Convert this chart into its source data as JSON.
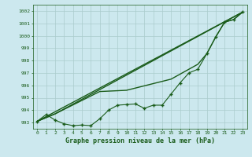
{
  "xlabel": "Graphe pression niveau de la mer (hPa)",
  "ylim": [
    992.5,
    1002.5
  ],
  "xlim": [
    -0.5,
    23.5
  ],
  "yticks": [
    993,
    994,
    995,
    996,
    997,
    998,
    999,
    1000,
    1001,
    1002
  ],
  "xticks": [
    0,
    1,
    2,
    3,
    4,
    5,
    6,
    7,
    8,
    9,
    10,
    11,
    12,
    13,
    14,
    15,
    16,
    17,
    18,
    19,
    20,
    21,
    22,
    23
  ],
  "bg_color": "#cce8ee",
  "grid_color": "#aacccc",
  "line_color": "#1a5c1a",
  "line1_x": [
    0,
    23
  ],
  "line1_y": [
    993.1,
    1001.9
  ],
  "line2_x": [
    0,
    2,
    23
  ],
  "line2_y": [
    993.1,
    993.7,
    1001.9
  ],
  "line3_x": [
    0,
    1,
    2,
    3,
    4,
    5,
    6,
    7,
    8,
    9,
    10,
    11,
    12,
    13,
    14,
    15,
    16,
    17,
    18,
    19,
    20,
    21,
    22,
    23
  ],
  "line3_y": [
    993.1,
    993.65,
    993.2,
    992.9,
    992.75,
    992.8,
    992.75,
    993.3,
    994.0,
    994.4,
    994.45,
    994.5,
    994.15,
    994.4,
    994.4,
    995.3,
    996.2,
    997.0,
    997.3,
    998.55,
    999.9,
    1001.1,
    1001.3,
    1001.9
  ],
  "line4_x": [
    0,
    2,
    7,
    10,
    15,
    17,
    18,
    19,
    20,
    21,
    22,
    23
  ],
  "line4_y": [
    993.1,
    993.7,
    995.5,
    995.6,
    996.5,
    997.3,
    997.7,
    998.55,
    999.9,
    1001.1,
    1001.3,
    1001.9
  ]
}
